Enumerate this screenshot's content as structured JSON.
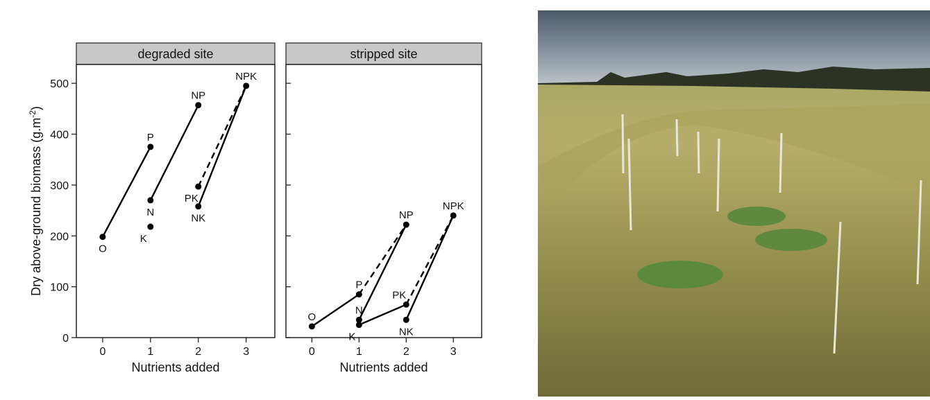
{
  "chart_data": [
    {
      "type": "line",
      "title": "degraded site",
      "xlabel": "Nutrients added",
      "ylabel": [
        "Dry above-ground biomass (g.m",
        "-2",
        ")"
      ],
      "labels": [
        "O",
        "P",
        "N",
        "K",
        "NP",
        "PK",
        "NK",
        "NPK"
      ],
      "x": [
        0,
        1,
        1,
        1,
        2,
        2,
        2,
        3
      ],
      "values": [
        198,
        375,
        270,
        218,
        457,
        297,
        258,
        495
      ],
      "label_pos": [
        "below",
        "above",
        "below",
        "below",
        "above",
        "below",
        "below",
        "above"
      ],
      "links": [
        {
          "from": 0,
          "to": 1,
          "dash": false
        },
        {
          "from": 2,
          "to": 4,
          "dash": false
        },
        {
          "from": 5,
          "to": 7,
          "dash": true
        },
        {
          "from": 6,
          "to": 7,
          "dash": false
        }
      ],
      "color": "#000000",
      "xlim": [
        -0.55,
        3.6
      ],
      "ylim": [
        0,
        537
      ],
      "xticks": [
        0,
        1,
        2,
        3
      ],
      "yticks": [
        0,
        100,
        200,
        300,
        400,
        500
      ],
      "ytick_labels": true
    },
    {
      "type": "line",
      "title": "stripped site",
      "xlabel": "Nutrients added",
      "labels": [
        "O",
        "P",
        "N",
        "K",
        "NP",
        "PK",
        "NK",
        "NPK"
      ],
      "x": [
        0,
        1,
        1,
        1,
        2,
        2,
        2,
        3
      ],
      "values": [
        22,
        85,
        35,
        25,
        222,
        65,
        35,
        240
      ],
      "label_pos": [
        "above",
        "above",
        "above",
        "below",
        "above",
        "above",
        "below",
        "above"
      ],
      "links": [
        {
          "from": 0,
          "to": 1,
          "dash": false
        },
        {
          "from": 1,
          "to": 4,
          "dash": true
        },
        {
          "from": 2,
          "to": 4,
          "dash": false
        },
        {
          "from": 3,
          "to": 5,
          "dash": false
        },
        {
          "from": 5,
          "to": 7,
          "dash": true
        },
        {
          "from": 6,
          "to": 7,
          "dash": false
        }
      ],
      "color": "#000000",
      "xlim": [
        -0.55,
        3.6
      ],
      "ylim": [
        0,
        537
      ],
      "xticks": [
        0,
        1,
        2,
        3
      ],
      "yticks": [
        0,
        100,
        200,
        300,
        400,
        500
      ],
      "ytick_labels": false
    }
  ]
}
